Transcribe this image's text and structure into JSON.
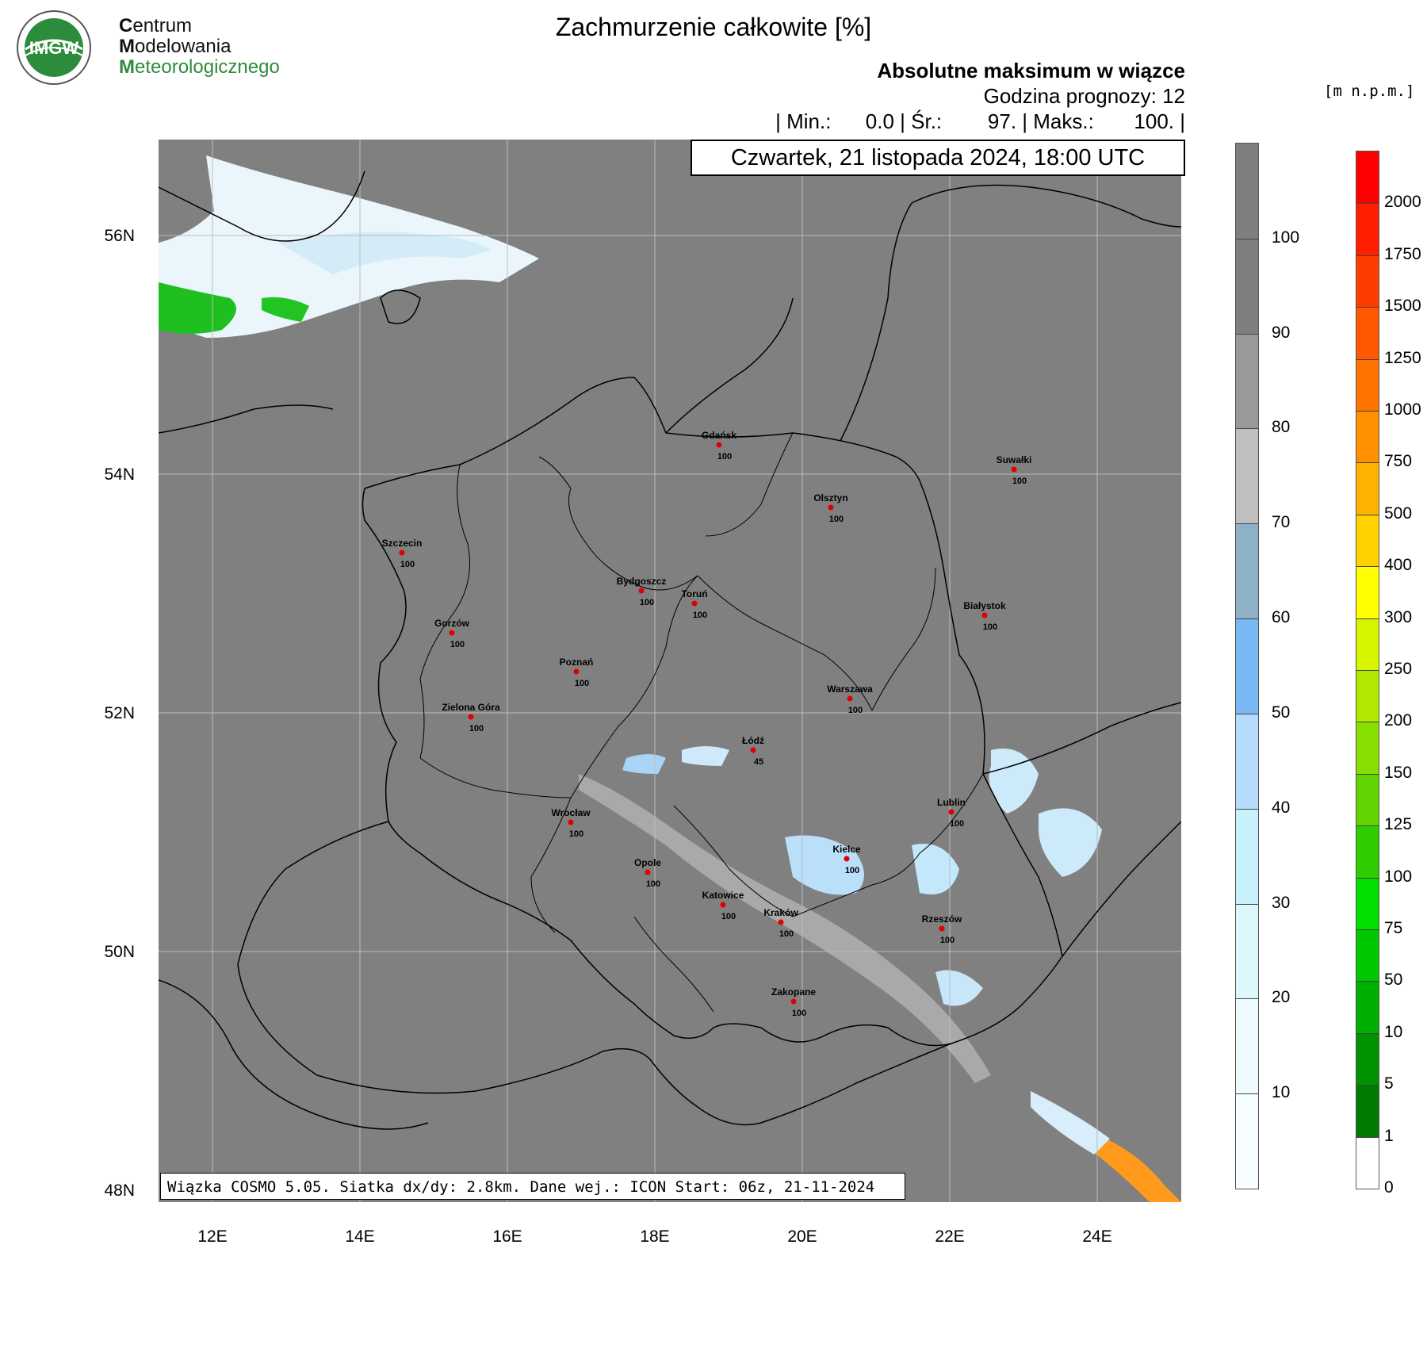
{
  "logo": {
    "badge_text": "IMGW",
    "line1_initial": "C",
    "line1_rest": "entrum",
    "line2_initial": "M",
    "line2_rest": "odelowania",
    "line3_initial": "M",
    "line3_rest": "eteorologicznego"
  },
  "header": {
    "title": "Zachmurzenie całkowite [%]",
    "subtitle": "Absolutne maksimum w wiązce",
    "forecast_hour": "Godzina prognozy: 12",
    "stats": "| Min.:      0.0 | Śr.:        97. | Maks.:       100. |",
    "datetime": "Czwartek, 21 listopada 2024, 18:00 UTC"
  },
  "footer": {
    "model_info": "Wiązka COSMO 5.05. Siatka dx/dy: 2.8km. Dane wej.: ICON Start: 06z, 21-11-2024"
  },
  "axes": {
    "lat_labels": [
      "56N",
      "54N",
      "52N",
      "50N",
      "48N"
    ],
    "lon_labels": [
      "12E",
      "14E",
      "16E",
      "18E",
      "20E",
      "22E",
      "24E"
    ]
  },
  "cloud_scale": {
    "labels": [
      "100",
      "90",
      "80",
      "70",
      "60",
      "50",
      "40",
      "30",
      "20",
      "10"
    ],
    "colors": [
      "#7f7f7f",
      "#999999",
      "#bfbfbf",
      "#8eb1c8",
      "#7ab8f5",
      "#b5dcfb",
      "#c7f2fb",
      "#ddf8fd",
      "#eefbfe",
      "#f7fdff"
    ]
  },
  "elevation_scale": {
    "units": "[m n.p.m.]",
    "labels": [
      "2000",
      "1750",
      "1500",
      "1250",
      "1000",
      "750",
      "500",
      "400",
      "300",
      "250",
      "200",
      "150",
      "125",
      "100",
      "75",
      "50",
      "10",
      "5",
      "1",
      "0"
    ],
    "colors": [
      "#ff0000",
      "#ff1e00",
      "#ff3b00",
      "#ff5800",
      "#ff7400",
      "#ff9000",
      "#ffb300",
      "#ffd200",
      "#ffff00",
      "#d8f500",
      "#b0e800",
      "#88de00",
      "#5fd400",
      "#2fcc00",
      "#00e000",
      "#00c800",
      "#00b000",
      "#009200",
      "#007a00",
      "#ffffff"
    ]
  },
  "cities": [
    {
      "name": "Gdańsk",
      "value": "100"
    },
    {
      "name": "Suwałki",
      "value": "100"
    },
    {
      "name": "Olsztyn",
      "value": "100"
    },
    {
      "name": "Szczecin",
      "value": "100"
    },
    {
      "name": "Bydgoszcz",
      "value": "100"
    },
    {
      "name": "Toruń",
      "value": "100"
    },
    {
      "name": "Białystok",
      "value": "100"
    },
    {
      "name": "Gorzów",
      "value": "100"
    },
    {
      "name": "Poznań",
      "value": "100"
    },
    {
      "name": "Warszawa",
      "value": "100"
    },
    {
      "name": "Zielona Góra",
      "value": "100"
    },
    {
      "name": "Łódź",
      "value": "45"
    },
    {
      "name": "Lublin",
      "value": "100"
    },
    {
      "name": "Wrocław",
      "value": "100"
    },
    {
      "name": "Kielce",
      "value": "100"
    },
    {
      "name": "Opole",
      "value": "100"
    },
    {
      "name": "Katowice",
      "value": "100"
    },
    {
      "name": "Rzeszów",
      "value": "100"
    },
    {
      "name": "Kraków",
      "value": "100"
    },
    {
      "name": "Zakopane",
      "value": "100"
    }
  ]
}
